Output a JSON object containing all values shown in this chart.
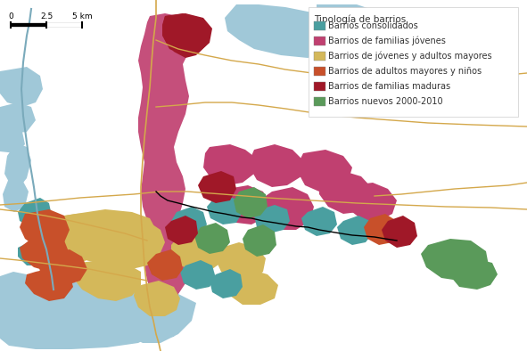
{
  "legend_title": "Tipología de barrios",
  "legend_items": [
    {
      "label": "Barrios consolidados",
      "color": "#4a9fa0"
    },
    {
      "label": "Barrios de familias jóvenes",
      "color": "#c04070"
    },
    {
      "label": "Barrios de jóvenes y adultos mayores",
      "color": "#d4b85a"
    },
    {
      "label": "Barrios de adultos mayores y niños",
      "color": "#c8502a"
    },
    {
      "label": "Barrios de familias maduras",
      "color": "#a01828"
    },
    {
      "label": "Barrios nuevos 2000-2010",
      "color": "#5a9a5a"
    }
  ],
  "background_color": "#ffffff",
  "water_color": "#a0c8d8",
  "road_color": "#d4a84b",
  "river_color": "#7aaabb"
}
